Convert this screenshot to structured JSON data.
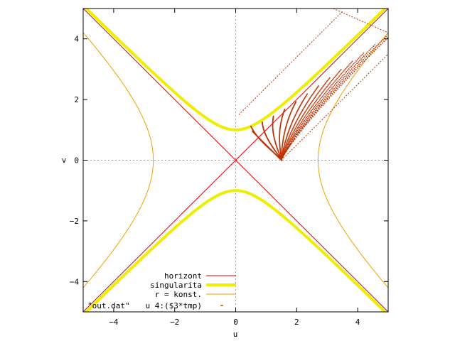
{
  "chart_data": {
    "type": "line",
    "xlabel": "u",
    "ylabel": "v",
    "xlim": [
      -5,
      5
    ],
    "ylim": [
      -5,
      5
    ],
    "x_ticks": [
      -4,
      -2,
      0,
      2,
      4
    ],
    "y_ticks": [
      -4,
      -2,
      0,
      2,
      4
    ],
    "x_tick_labels": [
      "−4",
      "−2",
      "0",
      "2",
      "4"
    ],
    "y_tick_labels": [
      "−4",
      "−2",
      "0",
      "2",
      "4"
    ],
    "zero_axes_dashed": true,
    "legend_position": "bottom-center",
    "colors": {
      "horizont": "#dd0000",
      "singularita": "#eeee00",
      "konst": "#f0a000",
      "dat": "#c03000"
    },
    "series": [
      {
        "name": "horizont",
        "style": "line",
        "description_values": {
          "lines": [
            [
              [
                -5,
                5
              ],
              [
                5,
                -5
              ]
            ],
            [
              [
                -5,
                -5
              ],
              [
                5,
                5
              ]
            ]
          ]
        }
      },
      {
        "name": "singularita",
        "style": "thick-line",
        "description_values": {
          "hyperbola": "v^2 - u^2 = 1",
          "x_range": [
            -5,
            5
          ]
        }
      },
      {
        "name": "r = konst.",
        "style": "thin-line",
        "description_values": {
          "hyperbola": "u^2 - v^2 = 7.3",
          "y_range": [
            -5,
            5
          ]
        }
      },
      {
        "name": "\"out.dat\"        u 4:($3*tmp)",
        "style": "points",
        "description_values": {
          "apex": [
            1.5,
            0
          ],
          "shifted_horizon_lines": [
            [
              [
                1.5,
                0
              ],
              [
                0.55,
                0.95
              ]
            ],
            [
              [
                1.5,
                0
              ],
              [
                5,
                3.5
              ]
            ],
            [
              [
                0.1,
                1.5
              ],
              [
                3.5,
                4.9
              ]
            ]
          ]
        }
      }
    ],
    "legend": [
      {
        "label": "horizont",
        "series": 0
      },
      {
        "label": "singularita",
        "series": 1
      },
      {
        "label": "r = konst.",
        "series": 2
      },
      {
        "label_left": "\"out.dat\"",
        "label_right": "u 4:($3*tmp)",
        "series": 3
      }
    ]
  }
}
